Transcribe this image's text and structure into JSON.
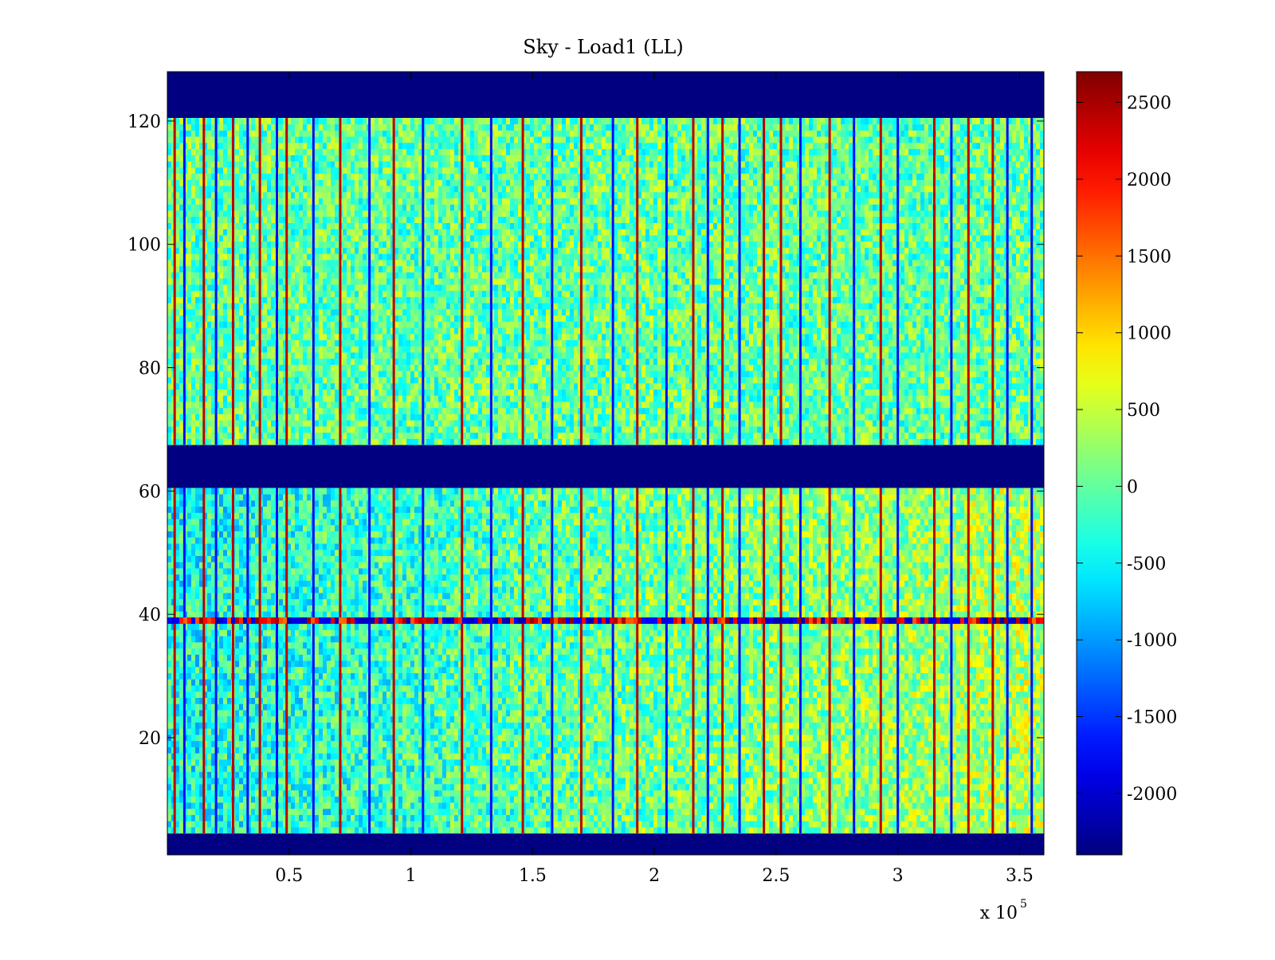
{
  "chart_data": {
    "type": "heatmap",
    "title": "Sky - Load1 (LL)",
    "xlabel": "",
    "ylabel": "",
    "x_range": [
      0,
      360000
    ],
    "y_range": [
      1,
      128
    ],
    "x_multiplier_label": "x 10",
    "x_multiplier_exponent": "5",
    "x_ticks": [
      {
        "value": 50000,
        "label": "0.5"
      },
      {
        "value": 100000,
        "label": "1"
      },
      {
        "value": 150000,
        "label": "1.5"
      },
      {
        "value": 200000,
        "label": "2"
      },
      {
        "value": 250000,
        "label": "2.5"
      },
      {
        "value": 300000,
        "label": "3"
      },
      {
        "value": 350000,
        "label": "3.5"
      }
    ],
    "y_ticks": [
      {
        "value": 20,
        "label": "20"
      },
      {
        "value": 40,
        "label": "40"
      },
      {
        "value": 60,
        "label": "60"
      },
      {
        "value": 80,
        "label": "80"
      },
      {
        "value": 100,
        "label": "100"
      },
      {
        "value": 120,
        "label": "120"
      }
    ],
    "colorbar": {
      "colormap": "jet",
      "range": [
        -2400,
        2700
      ],
      "ticks": [
        {
          "value": 2500,
          "label": "2500"
        },
        {
          "value": 2000,
          "label": "2000"
        },
        {
          "value": 1500,
          "label": "1500"
        },
        {
          "value": 1000,
          "label": "1000"
        },
        {
          "value": 500,
          "label": "500"
        },
        {
          "value": 0,
          "label": "0"
        },
        {
          "value": -500,
          "label": "-500"
        },
        {
          "value": -1000,
          "label": "-1000"
        },
        {
          "value": -1500,
          "label": "-1500"
        },
        {
          "value": -2000,
          "label": "-2000"
        }
      ]
    },
    "masked_row_bands": [
      [
        1,
        4
      ],
      [
        61,
        67
      ],
      [
        121,
        128
      ]
    ],
    "mask_value": -2400,
    "background_level_upper_rows": 0,
    "background_level_lower_rows_left": -400,
    "background_level_lower_rows_right": 400,
    "bright_stripes_x": [
      3000,
      15000,
      27000,
      38000,
      49000,
      71000,
      93000,
      121000,
      146000,
      170000,
      193000,
      216000,
      228000,
      245000,
      252000,
      272000,
      293000,
      315000,
      329000,
      339000
    ],
    "dark_stripes_x": [
      7000,
      20000,
      33000,
      45000,
      60000,
      83000,
      105000,
      133000,
      158000,
      183000,
      205000,
      222000,
      235000,
      260000,
      282000,
      300000,
      322000,
      345000,
      355000
    ],
    "anomalous_row": {
      "y": 39,
      "pattern": "alternating strong negative and positive values"
    }
  }
}
